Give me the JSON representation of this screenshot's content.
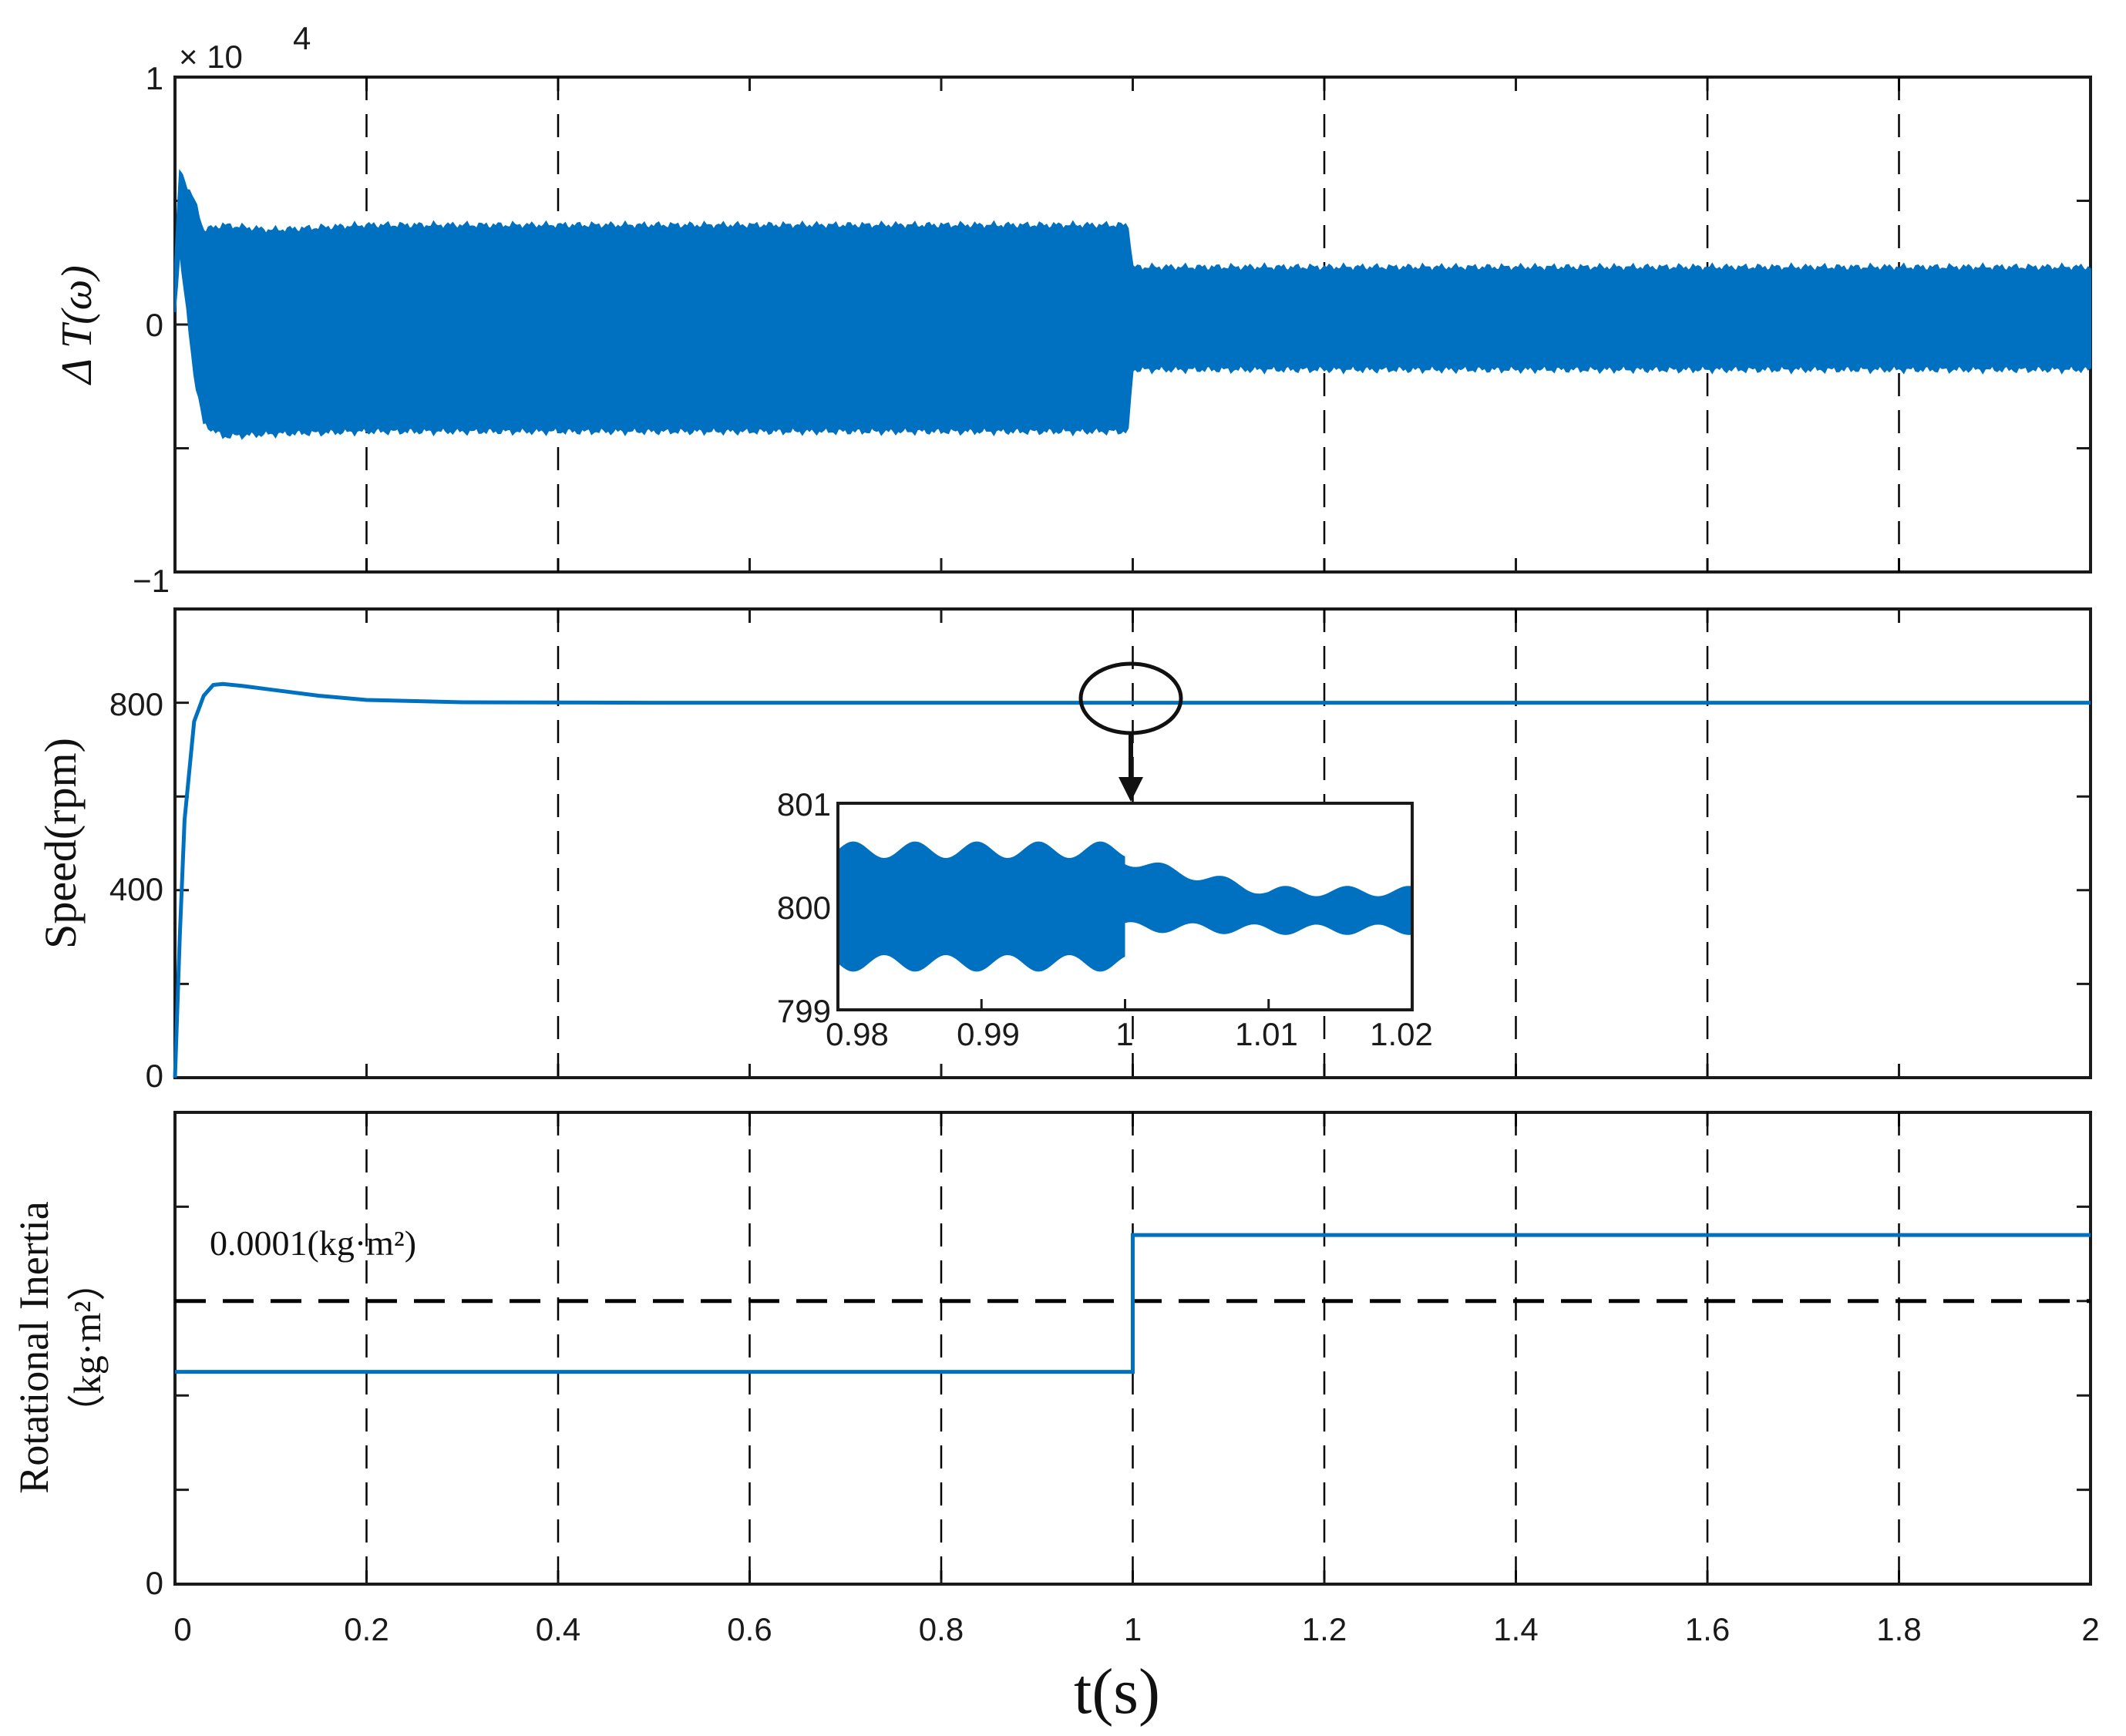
{
  "colors": {
    "series": "#0070c0",
    "axis": "#1a1a1a",
    "reference": "#000000"
  },
  "xaxis": {
    "label": "t(s)",
    "range": [
      0,
      2
    ],
    "ticks": [
      "0",
      "0.2",
      "0.4",
      "0.6",
      "0.8",
      "1",
      "1.2",
      "1.4",
      "1.6",
      "1.8",
      "2"
    ]
  },
  "chart_data": [
    {
      "type": "area",
      "panel": "top",
      "ylabel_prefix": "Δ ",
      "ylabel_main": "T(ω)",
      "exponent": "× 10",
      "exponent_power": "4",
      "ylim": [
        -1,
        1
      ],
      "ytick_labels": [
        "1",
        "0",
        "−1"
      ],
      "series": [
        {
          "description_free_envelope": true,
          "t": [
            0,
            0.005,
            0.02,
            0.03,
            0.05,
            0.1,
            0.2,
            0.5,
            0.995,
            1.0,
            1.5,
            2.0
          ],
          "upper": [
            0.25,
            0.62,
            0.5,
            0.38,
            0.4,
            0.38,
            0.4,
            0.4,
            0.4,
            0.23,
            0.23,
            0.23
          ],
          "lower": [
            0.05,
            0.3,
            -0.2,
            -0.4,
            -0.45,
            -0.44,
            -0.43,
            -0.43,
            -0.43,
            -0.18,
            -0.18,
            -0.18
          ]
        }
      ],
      "dashed_x": [
        0.2,
        0.4,
        1.2,
        1.6,
        1.8
      ],
      "grid": false
    },
    {
      "type": "line",
      "panel": "middle",
      "ylabel": "Speed(rpm)",
      "ylim": [
        0,
        1000
      ],
      "ytick_labels": [
        "800",
        "400",
        "0"
      ],
      "series": [
        {
          "x": [
            0,
            0.005,
            0.01,
            0.02,
            0.03,
            0.04,
            0.05,
            0.07,
            0.1,
            0.15,
            0.2,
            0.3,
            0.5,
            1.0,
            2.0
          ],
          "y": [
            0,
            300,
            550,
            760,
            815,
            838,
            840,
            836,
            828,
            815,
            806,
            801,
            800,
            800,
            800
          ]
        }
      ],
      "dashed_x": [
        0.4,
        1.0,
        1.2,
        1.4,
        1.6
      ],
      "grid": false,
      "inset": {
        "type": "area",
        "xlim": [
          0.98,
          1.02
        ],
        "ylim": [
          799,
          801
        ],
        "xtick_labels": [
          "0.98",
          "0.99",
          "1",
          "1.01",
          "1.02"
        ],
        "ytick_labels": [
          "801",
          "800",
          "799"
        ],
        "before_step": {
          "upper": 800.55,
          "lower": 799.45,
          "ripple": 0.08
        },
        "after_step": {
          "upper": 800.45,
          "lower": 799.8,
          "settle_upper": 800.15,
          "settle_lower": 799.75
        },
        "step_at": 1.0
      }
    },
    {
      "type": "line",
      "panel": "bottom",
      "ylabel": "Rotational Inertia",
      "ylabel2": "（kg·m²）",
      "ytick_labels": [
        "0"
      ],
      "reference_label": "0.0001(kg·m²)",
      "ylim": [
        0,
        1
      ],
      "series": [
        {
          "x": [
            0,
            1.0,
            1.0,
            2.0
          ],
          "y": [
            0.45,
            0.45,
            0.74,
            0.74
          ]
        }
      ],
      "reference_y": 0.6,
      "dashed_x": [
        0.2,
        0.4,
        0.6,
        0.8,
        1.0,
        1.2,
        1.4,
        1.6,
        1.8
      ],
      "grid": false
    }
  ]
}
